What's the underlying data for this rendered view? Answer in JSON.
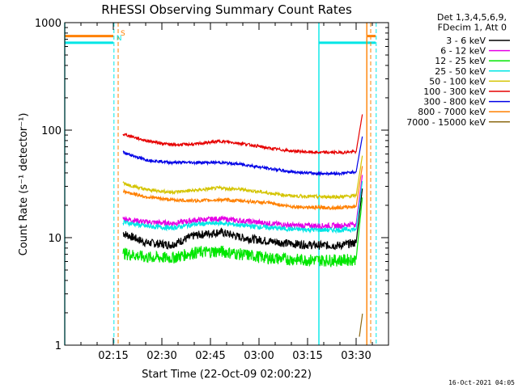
{
  "chart_data": {
    "type": "line",
    "title": "RHESSI Observing Summary Count Rates",
    "xlabel": "Start Time (22-Oct-09 02:00:22)",
    "ylabel": "Count Rate (s⁻¹ detector⁻¹)",
    "yscale": "log",
    "ylim": [
      1,
      1000
    ],
    "xlim_minutes": [
      0,
      100
    ],
    "x_ticks": [
      {
        "label": "02:15",
        "minute": 15
      },
      {
        "label": "02:30",
        "minute": 30
      },
      {
        "label": "02:45",
        "minute": 45
      },
      {
        "label": "03:00",
        "minute": 60
      },
      {
        "label": "03:15",
        "minute": 75
      },
      {
        "label": "03:30",
        "minute": 90
      }
    ],
    "y_ticks": [
      {
        "label": "1",
        "value": 1
      },
      {
        "label": "10",
        "value": 10
      },
      {
        "label": "100",
        "value": 100
      },
      {
        "label": "1000",
        "value": 1000
      }
    ],
    "legend_header": [
      "Det 1,3,4,5,6,9,",
      "FDecim 1, Att 0"
    ],
    "legend_position": "top-right, outside plot",
    "series": [
      {
        "name": "3 - 6 keV",
        "color": "#000000",
        "x": [
          18,
          25,
          33,
          40,
          48,
          55,
          63,
          70,
          78,
          85,
          90,
          92
        ],
        "values": [
          11,
          9,
          8.6,
          10.5,
          11.3,
          10,
          9.3,
          8.8,
          8.5,
          8.5,
          9,
          30
        ]
      },
      {
        "name": "6 - 12 keV",
        "color": "#e600e6",
        "x": [
          18,
          25,
          33,
          40,
          48,
          55,
          63,
          70,
          78,
          85,
          90,
          92
        ],
        "values": [
          15,
          14,
          13.6,
          14.5,
          15,
          14.3,
          13.6,
          13,
          12.9,
          12.9,
          13.5,
          40
        ]
      },
      {
        "name": "12 - 25 keV",
        "color": "#00e600",
        "x": [
          18,
          25,
          33,
          40,
          48,
          55,
          63,
          70,
          78,
          85,
          90,
          92
        ],
        "values": [
          7.2,
          6.6,
          6.5,
          7.3,
          7.5,
          7,
          6.5,
          6.3,
          6.2,
          6.2,
          6.3,
          25
        ]
      },
      {
        "name": "25 - 50 keV",
        "color": "#00e6e6",
        "x": [
          18,
          25,
          33,
          40,
          48,
          55,
          63,
          70,
          78,
          85,
          90,
          92
        ],
        "values": [
          14,
          12.8,
          12.3,
          13.3,
          13.7,
          13,
          12.4,
          12,
          11.8,
          11.8,
          12,
          35
        ]
      },
      {
        "name": "50 - 100 keV",
        "color": "#d4c400",
        "x": [
          18,
          25,
          33,
          40,
          48,
          55,
          63,
          70,
          78,
          85,
          90,
          92
        ],
        "values": [
          32,
          28,
          26.5,
          27.5,
          29,
          28,
          26,
          24.5,
          24,
          24,
          24.5,
          60
        ]
      },
      {
        "name": "100 - 300 keV",
        "color": "#e60000",
        "x": [
          18,
          25,
          33,
          40,
          48,
          55,
          63,
          70,
          78,
          85,
          90,
          92
        ],
        "values": [
          92,
          80,
          73,
          74,
          79,
          75,
          68,
          64,
          62,
          62,
          63,
          145
        ]
      },
      {
        "name": "300 - 800 keV",
        "color": "#0000e6",
        "x": [
          18,
          25,
          33,
          40,
          48,
          55,
          63,
          70,
          78,
          85,
          90,
          92
        ],
        "values": [
          62,
          53,
          50,
          50,
          50,
          48,
          44,
          41,
          39.5,
          39.5,
          41,
          90
        ]
      },
      {
        "name": "800 - 7000 keV",
        "color": "#ff8000",
        "x": [
          18,
          25,
          33,
          40,
          48,
          55,
          63,
          70,
          78,
          85,
          90,
          92
        ],
        "values": [
          27,
          24,
          22.5,
          22,
          22.5,
          22,
          21,
          19.5,
          19,
          19,
          19.5,
          48
        ]
      },
      {
        "name": "7000 - 15000 keV",
        "color": "#8b6914",
        "x": [
          91,
          92
        ],
        "values": [
          1.2,
          2
        ]
      }
    ],
    "markers": [
      {
        "label": "S",
        "color": "#ff8000",
        "minute": 16.5,
        "style": "dashed"
      },
      {
        "label": "N",
        "color": "#00e6e6",
        "minute": 15.2,
        "style": "dashed"
      },
      {
        "label": "",
        "color": "#ff8000",
        "minute": 94.5,
        "style": "dashed"
      },
      {
        "label": "",
        "color": "#00e6e6",
        "minute": 96.2,
        "style": "dashed"
      }
    ],
    "state_bars": [
      {
        "color": "#ff8000",
        "level": 750,
        "x_start": 0,
        "x_end": 15
      },
      {
        "color": "#00e6e6",
        "level": 650,
        "x_start": 0,
        "x_end": 15
      },
      {
        "color": "#ff8000",
        "level": 750,
        "x_start": 93.5,
        "x_end": 96
      },
      {
        "color": "#00e6e6",
        "level": 650,
        "x_start": 78.5,
        "x_end": 96
      }
    ],
    "vertical_lines": [
      {
        "color": "#00e6e6",
        "minute": 0
      },
      {
        "color": "#00e6e6",
        "minute": 78.5
      },
      {
        "color": "#ff8000",
        "minute": 93.3
      }
    ]
  },
  "footer": {
    "date_stamp": "16-Oct-2021 04:05"
  }
}
